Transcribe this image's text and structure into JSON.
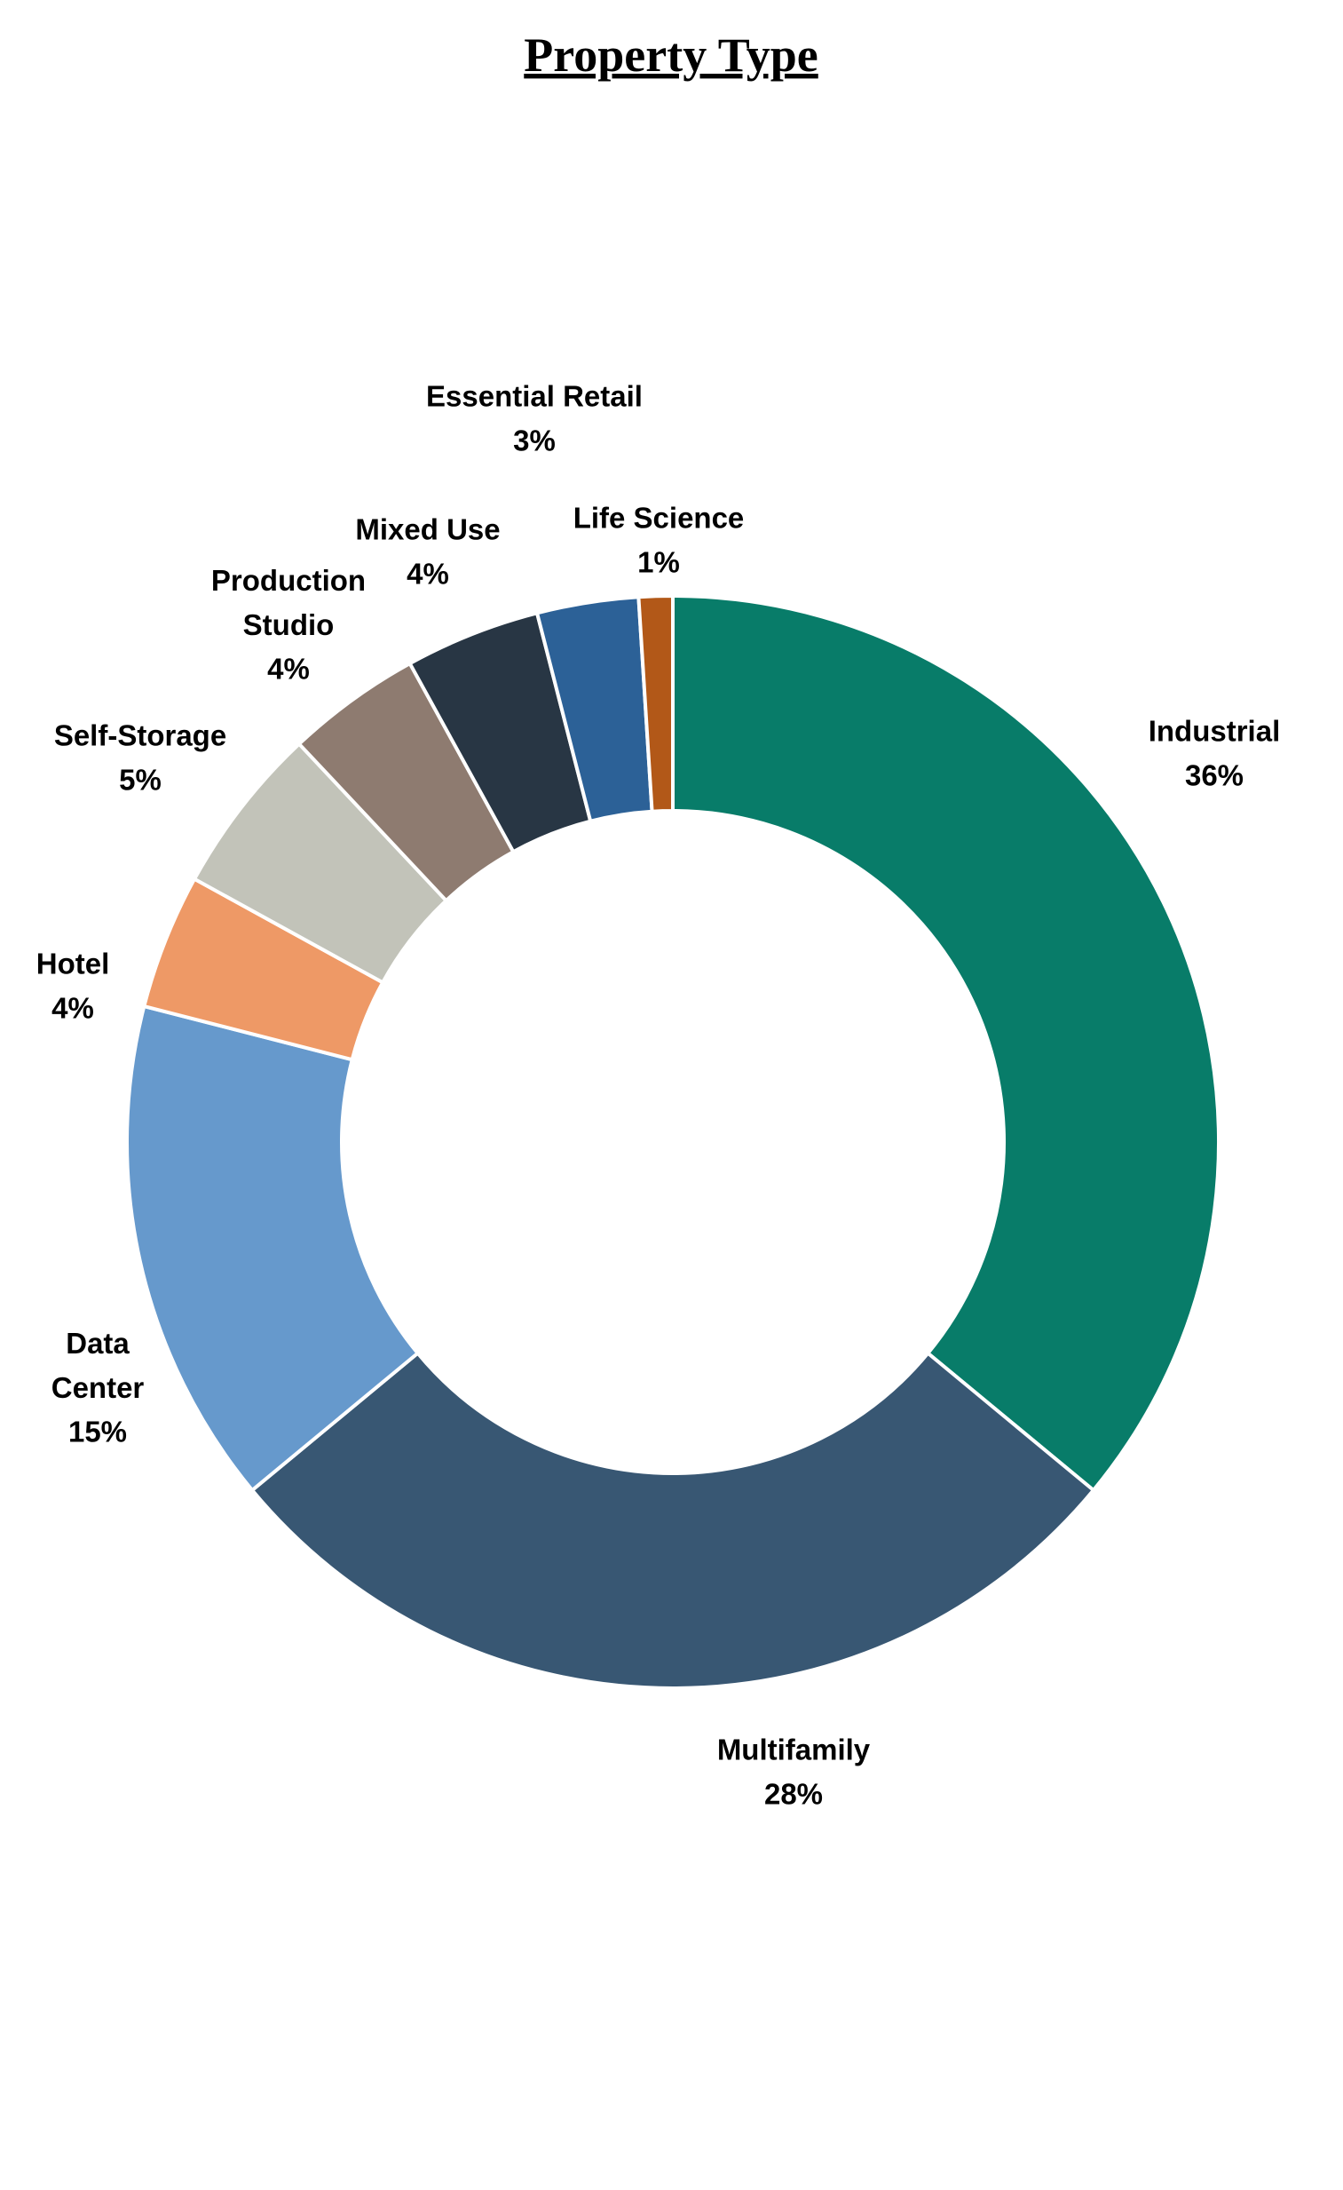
{
  "chart_data": {
    "type": "donut",
    "title": "Property Type",
    "categories": [
      "Industrial",
      "Multifamily",
      "Data Center",
      "Hotel",
      "Self-Storage",
      "Production Studio",
      "Mixed Use",
      "Essential Retail",
      "Life Science"
    ],
    "values": [
      36,
      28,
      15,
      4,
      5,
      4,
      4,
      3,
      1
    ],
    "value_labels": [
      "36%",
      "28%",
      "15%",
      "4%",
      "5%",
      "4%",
      "4%",
      "3%",
      "1%"
    ],
    "colors": [
      "#087c69",
      "#385773",
      "#6699cc",
      "#ee9966",
      "#c2c3b9",
      "#8e7b70",
      "#283644",
      "#2c6197",
      "#b25818"
    ]
  }
}
